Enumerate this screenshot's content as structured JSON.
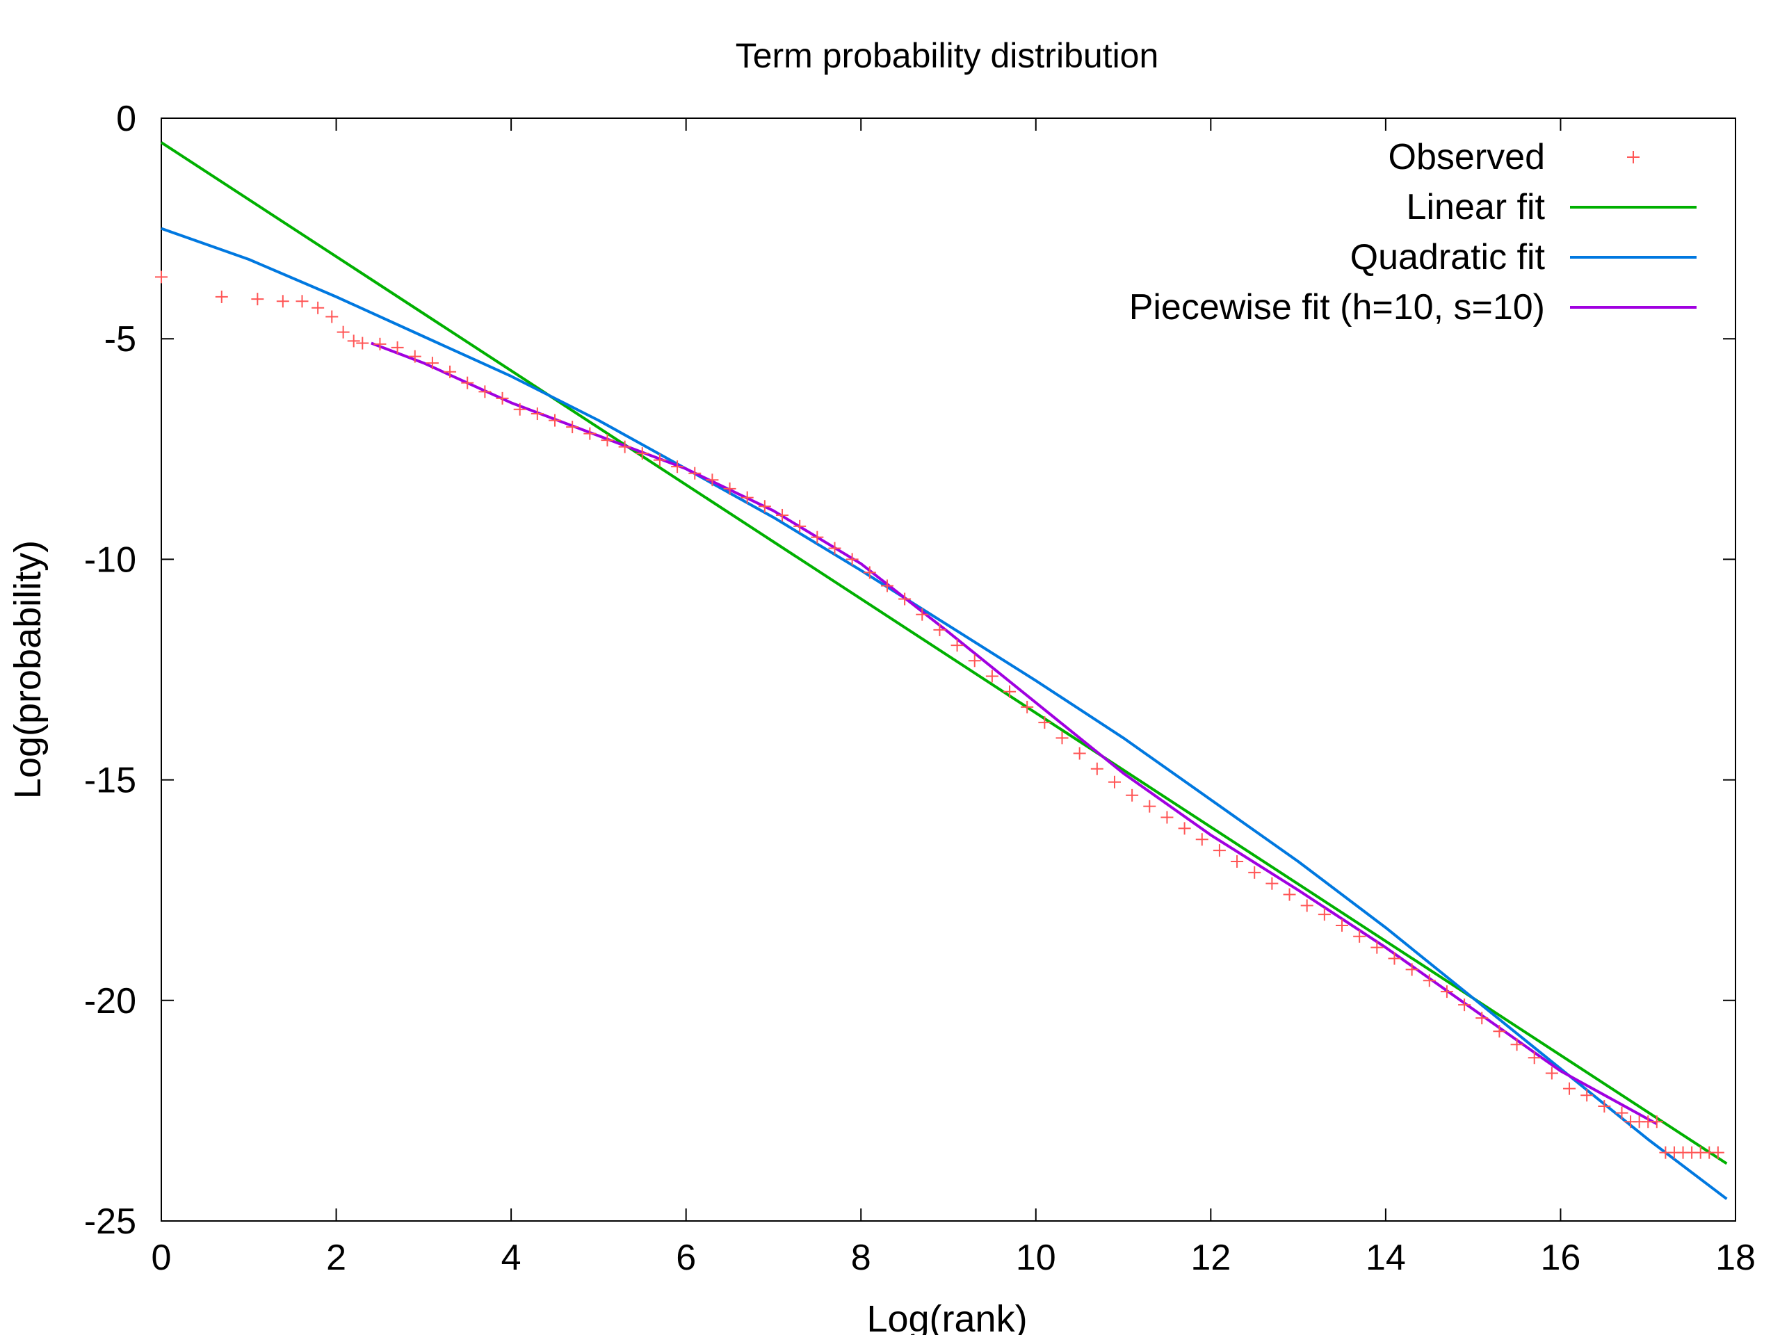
{
  "chart_data": {
    "type": "scatter",
    "title": "Term probability distribution",
    "xlabel": "Log(rank)",
    "ylabel": "Log(probability)",
    "xlim": [
      0,
      18
    ],
    "ylim": [
      -25,
      0
    ],
    "xticks": [
      "0",
      "2",
      "4",
      "6",
      "8",
      "10",
      "12",
      "14",
      "16",
      "18"
    ],
    "yticks": [
      "0",
      "-5",
      "-10",
      "-15",
      "-20",
      "-25"
    ],
    "legend_position": "top-right",
    "grid": false,
    "series": [
      {
        "name": "Observed",
        "kind": "points",
        "marker": "plus",
        "color": "#ff5555",
        "points": [
          [
            0.0,
            -3.6
          ],
          [
            0.69,
            -4.05
          ],
          [
            1.1,
            -4.1
          ],
          [
            1.39,
            -4.15
          ],
          [
            1.61,
            -4.15
          ],
          [
            1.79,
            -4.3
          ],
          [
            1.95,
            -4.5
          ],
          [
            2.08,
            -4.85
          ],
          [
            2.2,
            -5.05
          ],
          [
            2.3,
            -5.1
          ],
          [
            2.5,
            -5.12
          ],
          [
            2.7,
            -5.2
          ],
          [
            2.9,
            -5.4
          ],
          [
            3.1,
            -5.55
          ],
          [
            3.3,
            -5.75
          ],
          [
            3.5,
            -6.0
          ],
          [
            3.7,
            -6.2
          ],
          [
            3.9,
            -6.35
          ],
          [
            4.1,
            -6.6
          ],
          [
            4.3,
            -6.7
          ],
          [
            4.5,
            -6.85
          ],
          [
            4.7,
            -7.0
          ],
          [
            4.9,
            -7.15
          ],
          [
            5.1,
            -7.3
          ],
          [
            5.3,
            -7.45
          ],
          [
            5.5,
            -7.6
          ],
          [
            5.7,
            -7.75
          ],
          [
            5.9,
            -7.9
          ],
          [
            6.1,
            -8.05
          ],
          [
            6.3,
            -8.2
          ],
          [
            6.5,
            -8.4
          ],
          [
            6.7,
            -8.6
          ],
          [
            6.9,
            -8.8
          ],
          [
            7.1,
            -9.0
          ],
          [
            7.3,
            -9.25
          ],
          [
            7.5,
            -9.5
          ],
          [
            7.7,
            -9.75
          ],
          [
            7.9,
            -10.0
          ],
          [
            8.1,
            -10.3
          ],
          [
            8.3,
            -10.6
          ],
          [
            8.5,
            -10.9
          ],
          [
            8.7,
            -11.25
          ],
          [
            8.9,
            -11.6
          ],
          [
            9.1,
            -11.95
          ],
          [
            9.3,
            -12.3
          ],
          [
            9.5,
            -12.65
          ],
          [
            9.7,
            -13.0
          ],
          [
            9.9,
            -13.35
          ],
          [
            10.1,
            -13.7
          ],
          [
            10.3,
            -14.05
          ],
          [
            10.5,
            -14.4
          ],
          [
            10.7,
            -14.75
          ],
          [
            10.9,
            -15.05
          ],
          [
            11.1,
            -15.35
          ],
          [
            11.3,
            -15.6
          ],
          [
            11.5,
            -15.85
          ],
          [
            11.7,
            -16.1
          ],
          [
            11.9,
            -16.35
          ],
          [
            12.1,
            -16.6
          ],
          [
            12.3,
            -16.85
          ],
          [
            12.5,
            -17.1
          ],
          [
            12.7,
            -17.35
          ],
          [
            12.9,
            -17.6
          ],
          [
            13.1,
            -17.85
          ],
          [
            13.3,
            -18.05
          ],
          [
            13.5,
            -18.3
          ],
          [
            13.7,
            -18.55
          ],
          [
            13.9,
            -18.8
          ],
          [
            14.1,
            -19.05
          ],
          [
            14.3,
            -19.3
          ],
          [
            14.5,
            -19.55
          ],
          [
            14.7,
            -19.8
          ],
          [
            14.9,
            -20.1
          ],
          [
            15.1,
            -20.4
          ],
          [
            15.3,
            -20.7
          ],
          [
            15.5,
            -21.0
          ],
          [
            15.7,
            -21.3
          ],
          [
            15.9,
            -21.65
          ],
          [
            16.1,
            -22.0
          ],
          [
            16.3,
            -22.15
          ],
          [
            16.5,
            -22.4
          ],
          [
            16.7,
            -22.55
          ],
          [
            16.8,
            -22.75
          ],
          [
            16.9,
            -22.75
          ],
          [
            17.0,
            -22.75
          ],
          [
            17.1,
            -22.75
          ],
          [
            17.2,
            -23.45
          ],
          [
            17.3,
            -23.45
          ],
          [
            17.4,
            -23.45
          ],
          [
            17.5,
            -23.45
          ],
          [
            17.6,
            -23.45
          ],
          [
            17.7,
            -23.45
          ],
          [
            17.8,
            -23.45
          ]
        ]
      },
      {
        "name": "Linear fit",
        "kind": "line",
        "color": "#00b000",
        "points": [
          [
            0.0,
            -0.55
          ],
          [
            17.9,
            -23.7
          ]
        ]
      },
      {
        "name": "Quadratic fit",
        "kind": "line",
        "color": "#0078e0",
        "points": [
          [
            0,
            -2.5
          ],
          [
            1,
            -3.2
          ],
          [
            2,
            -4.05
          ],
          [
            3,
            -4.95
          ],
          [
            4,
            -5.85
          ],
          [
            5,
            -6.85
          ],
          [
            6,
            -7.95
          ],
          [
            7,
            -9.05
          ],
          [
            8,
            -10.25
          ],
          [
            9,
            -11.5
          ],
          [
            10,
            -12.75
          ],
          [
            11,
            -14.05
          ],
          [
            12,
            -15.45
          ],
          [
            13,
            -16.85
          ],
          [
            14,
            -18.35
          ],
          [
            15,
            -19.95
          ],
          [
            16,
            -21.55
          ],
          [
            17,
            -23.15
          ],
          [
            17.9,
            -24.5
          ]
        ]
      },
      {
        "name": "Piecewise fit (h=10, s=10)",
        "kind": "line",
        "color": "#a000e0",
        "points": [
          [
            2.4,
            -5.1
          ],
          [
            3,
            -5.55
          ],
          [
            4,
            -6.45
          ],
          [
            5,
            -7.2
          ],
          [
            6,
            -7.95
          ],
          [
            7,
            -8.9
          ],
          [
            8,
            -10.1
          ],
          [
            9,
            -11.65
          ],
          [
            10,
            -13.25
          ],
          [
            11,
            -14.85
          ],
          [
            12,
            -16.25
          ],
          [
            13,
            -17.5
          ],
          [
            14,
            -18.8
          ],
          [
            15,
            -20.2
          ],
          [
            16,
            -21.6
          ],
          [
            17.1,
            -22.8
          ]
        ]
      }
    ]
  }
}
